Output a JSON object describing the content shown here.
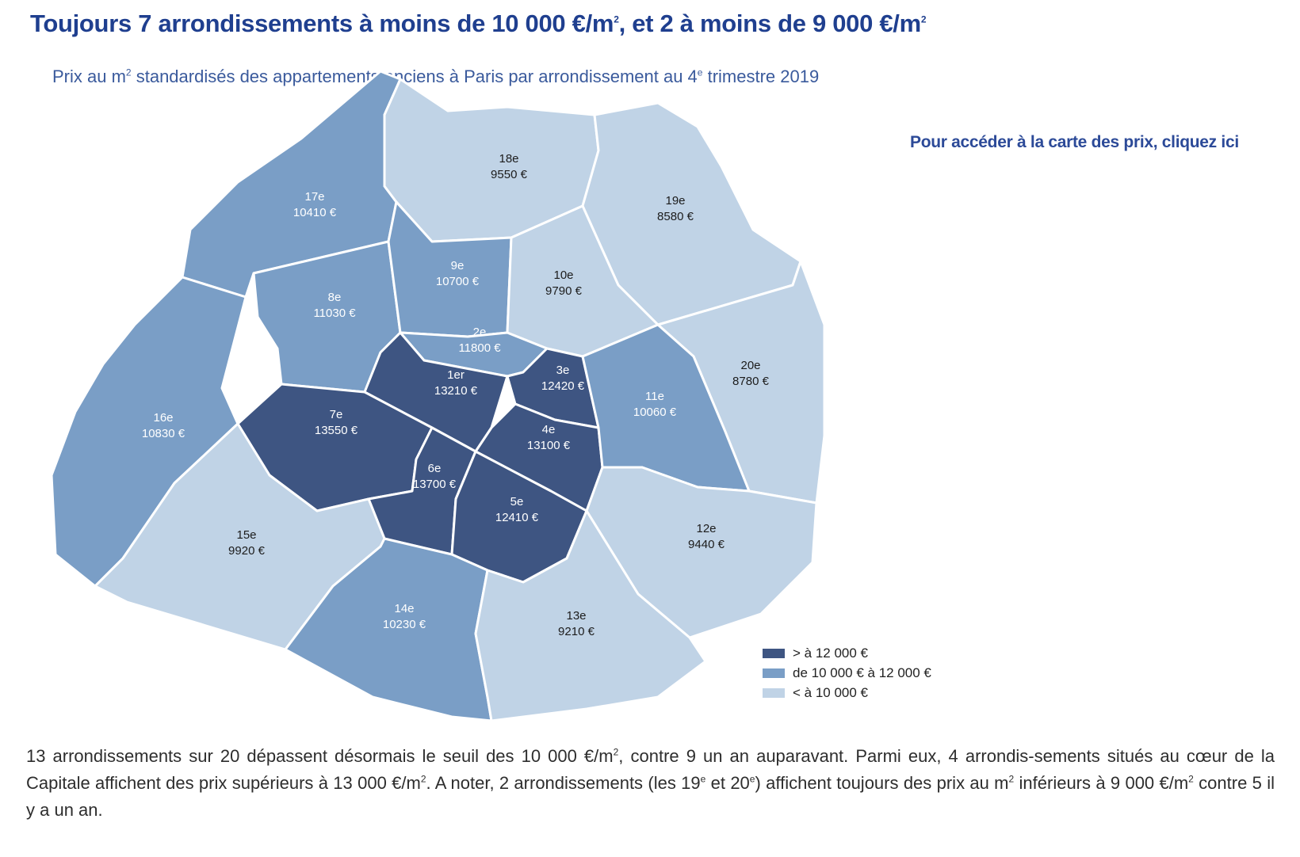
{
  "header": {
    "title_before": "Toujours 7 arrondissements à moins de 10 000 €/m",
    "title_sup1": "2",
    "title_middle": ", et 2 à moins de 9 000 €/m",
    "title_sup2": "2",
    "subtitle_before": "Prix au m",
    "subtitle_sup1": "2",
    "subtitle_middle": " standardisés des appartements anciens à Paris par arrondissement au 4",
    "subtitle_sup2": "e",
    "subtitle_after": " trimestre 2019"
  },
  "link_text": "Pour accéder à la carte des prix, cliquez ici",
  "colors": {
    "dark": "#3e5582",
    "medium": "#7a9ec6",
    "light": "#c0d3e6",
    "title": "#1f3f8f"
  },
  "map": {
    "districts": [
      {
        "id": "1",
        "name": "1er",
        "price": "13210 €",
        "category": "dark"
      },
      {
        "id": "2",
        "name": "2e",
        "price": "11800 €",
        "category": "medium"
      },
      {
        "id": "3",
        "name": "3e",
        "price": "12420 €",
        "category": "dark"
      },
      {
        "id": "4",
        "name": "4e",
        "price": "13100 €",
        "category": "dark"
      },
      {
        "id": "5",
        "name": "5e",
        "price": "12410 €",
        "category": "dark"
      },
      {
        "id": "6",
        "name": "6e",
        "price": "13700 €",
        "category": "dark"
      },
      {
        "id": "7",
        "name": "7e",
        "price": "13550 €",
        "category": "dark"
      },
      {
        "id": "8",
        "name": "8e",
        "price": "11030 €",
        "category": "medium"
      },
      {
        "id": "9",
        "name": "9e",
        "price": "10700 €",
        "category": "medium"
      },
      {
        "id": "10",
        "name": "10e",
        "price": "9790 €",
        "category": "light"
      },
      {
        "id": "11",
        "name": "11e",
        "price": "10060 €",
        "category": "medium"
      },
      {
        "id": "12",
        "name": "12e",
        "price": "9440 €",
        "category": "light"
      },
      {
        "id": "13",
        "name": "13e",
        "price": "9210 €",
        "category": "light"
      },
      {
        "id": "14",
        "name": "14e",
        "price": "10230 €",
        "category": "medium"
      },
      {
        "id": "15",
        "name": "15e",
        "price": "9920 €",
        "category": "light"
      },
      {
        "id": "16",
        "name": "16e",
        "price": "10830 €",
        "category": "medium"
      },
      {
        "id": "17",
        "name": "17e",
        "price": "10410 €",
        "category": "medium"
      },
      {
        "id": "18",
        "name": "18e",
        "price": "9550 €",
        "category": "light"
      },
      {
        "id": "19",
        "name": "19e",
        "price": "8580 €",
        "category": "light"
      },
      {
        "id": "20",
        "name": "20e",
        "price": "8780 €",
        "category": "light"
      }
    ]
  },
  "legend": {
    "items": [
      {
        "label": "> à 12 000 €",
        "category": "dark"
      },
      {
        "label": "de 10 000 € à 12 000 €",
        "category": "medium"
      },
      {
        "label": "< à 10 000 €",
        "category": "light"
      }
    ]
  },
  "body": {
    "t1": "13 arrondissements sur 20 dépassent désormais le seuil des 10 000 €/m",
    "s1": "2",
    "t2": ", contre 9 un an auparavant. Parmi eux, 4 arrondis-sements situés au cœur de la Capitale affichent des prix supérieurs à 13 000 €/m",
    "s2": "2",
    "t3": ". A noter, 2 arrondissements (les 19",
    "s3": "e",
    "t4": " et 20",
    "s4": "e",
    "t5": ") affichent toujours des prix au m",
    "s5": "2",
    "t6": " inférieurs à 9 000 €/m",
    "s6": "2",
    "t7": " contre 5 il y a un an."
  }
}
